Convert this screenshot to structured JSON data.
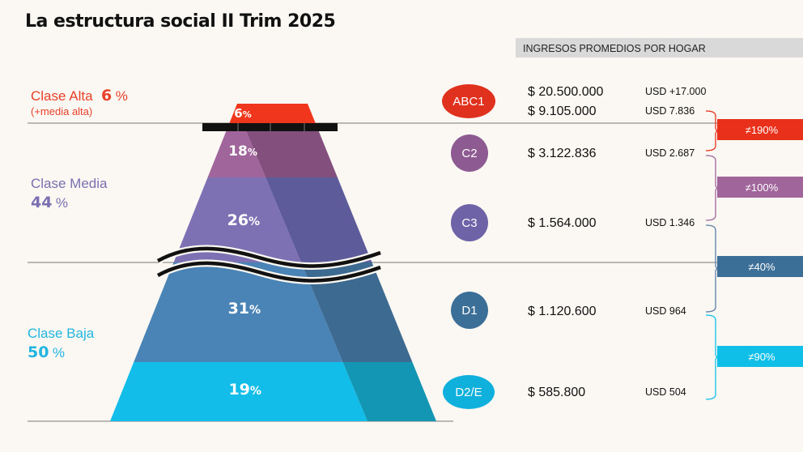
{
  "title": "La estructura social II Trim 2025",
  "income_header": "INGRESOS PROMEDIOS POR HOGAR",
  "classes": [
    {
      "name": "Clase Alta",
      "pct": "6",
      "pct_sym": "%",
      "sub": "(+media alta)",
      "color": "#e8402a"
    },
    {
      "name": "Clase Media",
      "pct": "44",
      "pct_sym": "%",
      "sub": "",
      "color": "#7a6fb0"
    },
    {
      "name": "Clase Baja",
      "pct": "50",
      "pct_sym": "%",
      "sub": "",
      "color": "#22b5e0"
    }
  ],
  "chart_data": {
    "type": "pyramid",
    "title": "La estructura social II Trim 2025",
    "segments": [
      {
        "label": "6",
        "value": 6,
        "color": "#f0361c",
        "side_color": "#c6291a"
      },
      {
        "label": "18",
        "value": 18,
        "color": "#a0659a",
        "side_color": "#83507e"
      },
      {
        "label": "26",
        "value": 26,
        "color": "#7d71b4",
        "side_color": "#5e5b9a"
      },
      {
        "label": "31",
        "value": 31,
        "color": "#4a83b5",
        "side_color": "#3c6a91"
      },
      {
        "label": "19",
        "value": 19,
        "color": "#13bde9",
        "side_color": "#1395b4"
      }
    ]
  },
  "groups": [
    {
      "code": "ABC1",
      "color": "#e0301e",
      "rows": [
        {
          "ars": "$ 20.500.000",
          "usd": "USD +17.000"
        },
        {
          "ars": "$ 9.105.000",
          "usd": "USD 7.836"
        }
      ]
    },
    {
      "code": "C2",
      "color": "#8d5a91",
      "rows": [
        {
          "ars": "$ 3.122.836",
          "usd": "USD 2.687"
        }
      ]
    },
    {
      "code": "C3",
      "color": "#6f63a8",
      "rows": [
        {
          "ars": "$ 1.564.000",
          "usd": "USD 1.346"
        }
      ]
    },
    {
      "code": "D1",
      "color": "#3c6f98",
      "rows": [
        {
          "ars": "$ 1.120.600",
          "usd": "USD 964"
        }
      ]
    },
    {
      "code": "D2/E",
      "color": "#10b0dc",
      "rows": [
        {
          "ars": "$ 585.800",
          "usd": "USD 504"
        }
      ]
    }
  ],
  "differences": [
    {
      "label": "≠190%",
      "color": "#e8301a"
    },
    {
      "label": "≠100%",
      "color": "#a0659a"
    },
    {
      "label": "≠40%",
      "color": "#3c6f98"
    },
    {
      "label": "≠90%",
      "color": "#10bfe8"
    }
  ]
}
